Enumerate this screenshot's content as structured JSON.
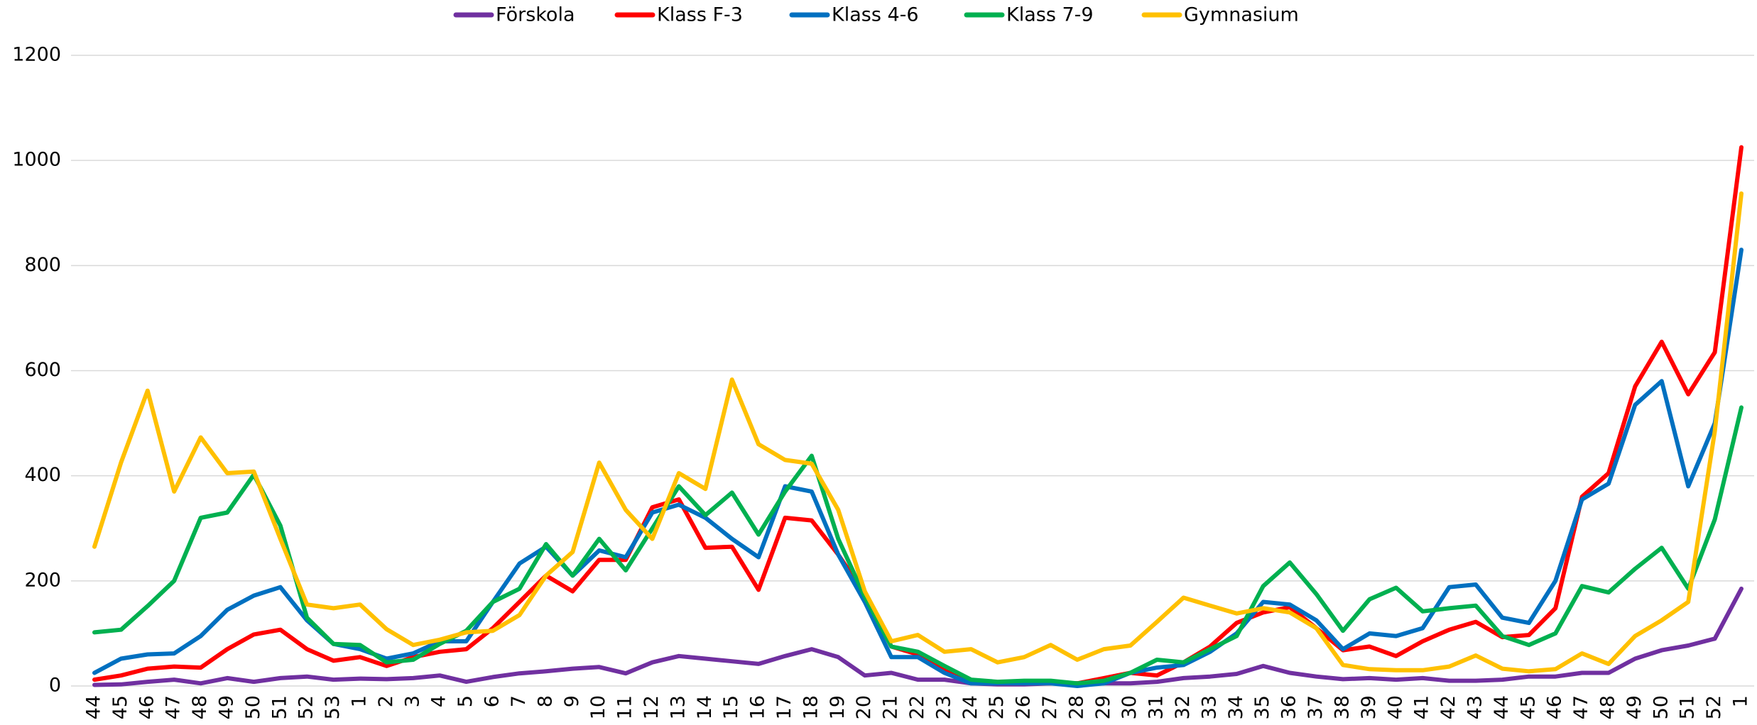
{
  "chart_data": {
    "type": "line",
    "categories": [
      "44",
      "45",
      "46",
      "47",
      "48",
      "49",
      "50",
      "51",
      "52",
      "53",
      "1",
      "2",
      "3",
      "4",
      "5",
      "6",
      "7",
      "8",
      "9",
      "10",
      "11",
      "12",
      "13",
      "14",
      "15",
      "16",
      "17",
      "18",
      "19",
      "20",
      "21",
      "22",
      "23",
      "24",
      "25",
      "26",
      "27",
      "28",
      "29",
      "30",
      "31",
      "32",
      "33",
      "34",
      "35",
      "36",
      "37",
      "38",
      "39",
      "40",
      "41",
      "42",
      "43",
      "44",
      "45",
      "46",
      "47",
      "48",
      "49",
      "50",
      "51",
      "52",
      "1"
    ],
    "series": [
      {
        "name": "Förskola",
        "color": "#7030a0",
        "values": [
          2,
          3,
          8,
          12,
          5,
          15,
          8,
          15,
          18,
          12,
          14,
          13,
          15,
          20,
          8,
          17,
          24,
          28,
          33,
          36,
          24,
          45,
          57,
          52,
          47,
          42,
          57,
          70,
          55,
          20,
          25,
          12,
          12,
          5,
          3,
          3,
          5,
          5,
          5,
          5,
          8,
          15,
          18,
          23,
          38,
          25,
          18,
          13,
          15,
          12,
          15,
          10,
          10,
          12,
          18,
          18,
          25,
          25,
          52,
          68,
          77,
          90,
          185
        ]
      },
      {
        "name": "Klass F-3",
        "color": "#ff0000",
        "values": [
          12,
          20,
          33,
          37,
          35,
          70,
          98,
          107,
          70,
          48,
          55,
          38,
          55,
          65,
          70,
          110,
          160,
          210,
          180,
          240,
          240,
          340,
          355,
          263,
          265,
          183,
          320,
          315,
          250,
          175,
          75,
          60,
          30,
          10,
          5,
          5,
          5,
          5,
          15,
          25,
          20,
          45,
          75,
          120,
          140,
          150,
          110,
          68,
          75,
          57,
          85,
          107,
          122,
          93,
          97,
          148,
          360,
          405,
          570,
          655,
          555,
          635,
          1025
        ]
      },
      {
        "name": "Klass 4-6",
        "color": "#0070c0",
        "values": [
          25,
          52,
          60,
          62,
          95,
          145,
          172,
          188,
          125,
          80,
          70,
          52,
          62,
          85,
          85,
          160,
          233,
          265,
          210,
          258,
          245,
          330,
          345,
          320,
          280,
          245,
          380,
          370,
          250,
          160,
          55,
          55,
          25,
          5,
          5,
          5,
          5,
          0,
          5,
          25,
          35,
          40,
          65,
          100,
          160,
          155,
          125,
          70,
          100,
          95,
          110,
          188,
          193,
          130,
          120,
          200,
          355,
          385,
          535,
          580,
          380,
          500,
          830
        ]
      },
      {
        "name": "Klass 7-9",
        "color": "#00b050",
        "values": [
          102,
          107,
          152,
          200,
          320,
          330,
          402,
          305,
          130,
          80,
          78,
          45,
          50,
          80,
          105,
          160,
          185,
          270,
          210,
          280,
          220,
          300,
          380,
          325,
          368,
          288,
          370,
          438,
          280,
          170,
          75,
          65,
          38,
          12,
          8,
          10,
          10,
          5,
          10,
          25,
          50,
          45,
          70,
          95,
          190,
          235,
          175,
          105,
          165,
          187,
          142,
          148,
          153,
          95,
          78,
          100,
          190,
          178,
          223,
          263,
          185,
          317,
          530
        ]
      },
      {
        "name": "Gymnasium",
        "color": "#ffc000",
        "values": [
          265,
          425,
          562,
          370,
          473,
          405,
          408,
          280,
          155,
          148,
          155,
          108,
          78,
          88,
          102,
          105,
          135,
          210,
          255,
          425,
          335,
          280,
          405,
          375,
          583,
          460,
          430,
          423,
          335,
          180,
          85,
          97,
          65,
          70,
          45,
          55,
          78,
          50,
          70,
          77,
          122,
          168,
          153,
          138,
          148,
          140,
          110,
          40,
          32,
          30,
          30,
          37,
          58,
          33,
          28,
          32,
          62,
          42,
          95,
          125,
          160,
          485,
          937
        ]
      }
    ],
    "ylim": [
      0,
      1200
    ],
    "yticks": [
      0,
      200,
      400,
      600,
      800,
      1000,
      1200
    ],
    "grid": true,
    "legend": "top"
  }
}
